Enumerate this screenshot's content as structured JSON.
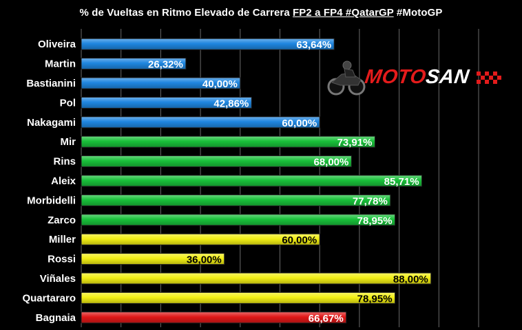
{
  "title": {
    "prefix": "% de Vueltas en Ritmo Elevado de Carrera",
    "underlined": "FP2 a FP4 #QatarGP",
    "suffix": "#MotoGP"
  },
  "logo": {
    "part1": "MOTO",
    "part2": "SAN"
  },
  "chart_data": {
    "type": "bar",
    "orientation": "horizontal",
    "xlim": [
      0,
      100
    ],
    "grid": true,
    "categories": [
      "Oliveira",
      "Martin",
      "Bastianini",
      "Pol",
      "Nakagami",
      "Mir",
      "Rins",
      "Aleix",
      "Morbidelli",
      "Zarco",
      "Miller",
      "Rossi",
      "Viñales",
      "Quartararo",
      "Bagnaia"
    ],
    "values": [
      63.64,
      26.32,
      40.0,
      42.86,
      60.0,
      73.91,
      68.0,
      85.71,
      77.78,
      78.95,
      60.0,
      36.0,
      88.0,
      78.95,
      66.67
    ],
    "value_labels": [
      "63,64%",
      "26,32%",
      "40,00%",
      "42,86%",
      "60,00%",
      "73,91%",
      "68,00%",
      "85,71%",
      "77,78%",
      "78,95%",
      "60,00%",
      "36,00%",
      "88,00%",
      "78,95%",
      "66,67%"
    ],
    "bar_colors": [
      "#1f86e0",
      "#1f86e0",
      "#1f86e0",
      "#1f86e0",
      "#1f86e0",
      "#19c13a",
      "#19c13a",
      "#19c13a",
      "#19c13a",
      "#19c13a",
      "#f2ef14",
      "#f2ef14",
      "#f2ef14",
      "#f2ef14",
      "#e01818"
    ],
    "label_colors": [
      "#ffffff",
      "#ffffff",
      "#ffffff",
      "#ffffff",
      "#ffffff",
      "#ffffff",
      "#ffffff",
      "#ffffff",
      "#ffffff",
      "#ffffff",
      "#000000",
      "#000000",
      "#000000",
      "#000000",
      "#ffffff"
    ]
  }
}
